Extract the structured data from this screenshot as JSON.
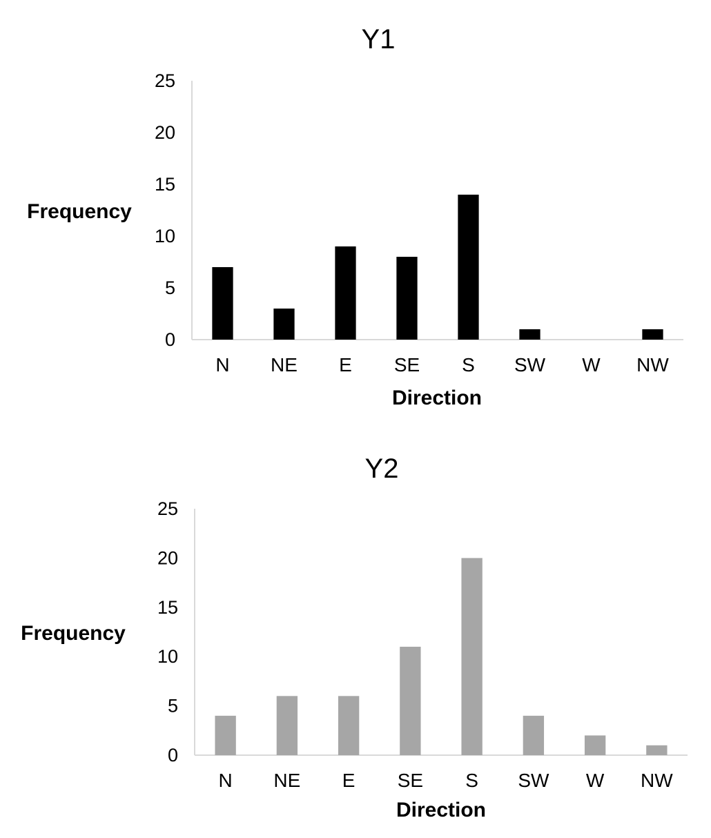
{
  "chart_data": [
    {
      "type": "bar",
      "title": "Y1",
      "xlabel": "Direction",
      "ylabel": "Frequency",
      "ylim": [
        0,
        25
      ],
      "yticks": [
        0,
        5,
        10,
        15,
        20,
        25
      ],
      "grid": false,
      "categories": [
        "N",
        "NE",
        "E",
        "SE",
        "S",
        "SW",
        "W",
        "NW"
      ],
      "values": [
        7,
        3,
        9,
        8,
        14,
        1,
        0,
        1
      ],
      "bar_color": "#000000"
    },
    {
      "type": "bar",
      "title": "Y2",
      "xlabel": "Direction",
      "ylabel": "Frequency",
      "ylim": [
        0,
        25
      ],
      "yticks": [
        0,
        5,
        10,
        15,
        20,
        25
      ],
      "grid": false,
      "categories": [
        "N",
        "NE",
        "E",
        "SE",
        "S",
        "SW",
        "W",
        "NW"
      ],
      "values": [
        4,
        6,
        6,
        11,
        20,
        4,
        2,
        1
      ],
      "bar_color": "#a6a6a6"
    }
  ]
}
